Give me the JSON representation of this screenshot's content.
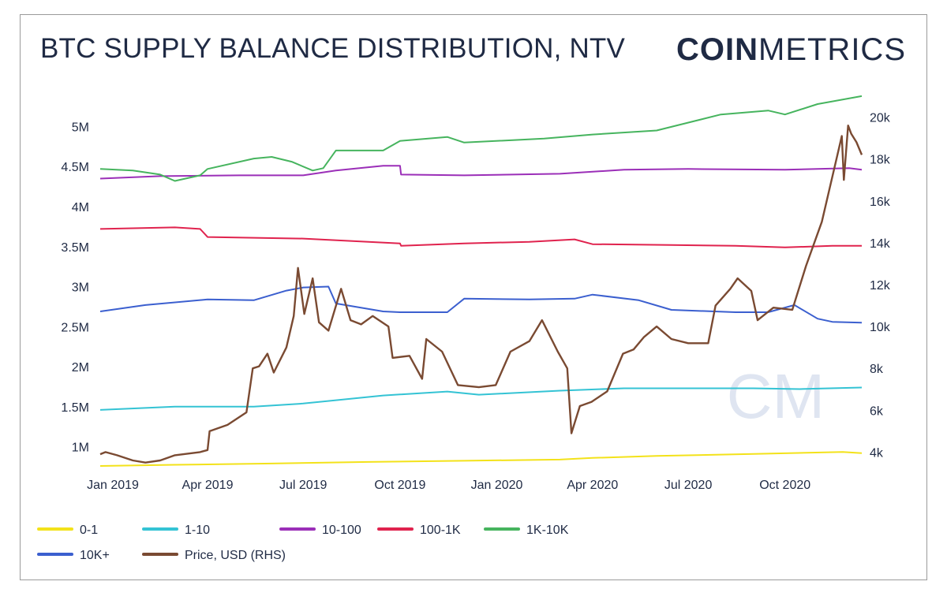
{
  "title": "BTC SUPPLY BALANCE DISTRIBUTION, NTV",
  "brand": {
    "part1": "COIN",
    "part2": "METRICS",
    "watermark": "CM"
  },
  "chart_data": {
    "type": "line",
    "title": "BTC SUPPLY BALANCE DISTRIBUTION, NTV",
    "x_start": "2018-12-20",
    "x_end": "2020-12-13",
    "x_ticks": [
      {
        "date": "2019-01-01",
        "label": "Jan 2019"
      },
      {
        "date": "2019-04-01",
        "label": "Apr 2019"
      },
      {
        "date": "2019-07-01",
        "label": "Jul 2019"
      },
      {
        "date": "2019-10-01",
        "label": "Oct 2019"
      },
      {
        "date": "2020-01-01",
        "label": "Jan 2020"
      },
      {
        "date": "2020-04-01",
        "label": "Apr 2020"
      },
      {
        "date": "2020-07-01",
        "label": "Jul 2020"
      },
      {
        "date": "2020-10-01",
        "label": "Oct 2020"
      }
    ],
    "left_axis": {
      "ylim": [
        750000,
        5300000
      ],
      "ticks": [
        {
          "value": 1000000,
          "label": "1M"
        },
        {
          "value": 1500000,
          "label": "1.5M"
        },
        {
          "value": 2000000,
          "label": "2M"
        },
        {
          "value": 2500000,
          "label": "2.5M"
        },
        {
          "value": 3000000,
          "label": "3M"
        },
        {
          "value": 3500000,
          "label": "3.5M"
        },
        {
          "value": 4000000,
          "label": "4M"
        },
        {
          "value": 4500000,
          "label": "4.5M"
        },
        {
          "value": 5000000,
          "label": "5M"
        }
      ]
    },
    "right_axis": {
      "ylim": [
        3300,
        20700
      ],
      "ticks": [
        {
          "value": 4000,
          "label": "4k"
        },
        {
          "value": 6000,
          "label": "6k"
        },
        {
          "value": 8000,
          "label": "8k"
        },
        {
          "value": 10000,
          "label": "10k"
        },
        {
          "value": 12000,
          "label": "12k"
        },
        {
          "value": 14000,
          "label": "14k"
        },
        {
          "value": 16000,
          "label": "16k"
        },
        {
          "value": 18000,
          "label": "18k"
        },
        {
          "value": 20000,
          "label": "20k"
        }
      ]
    },
    "series": [
      {
        "name": "0-1",
        "color": "#f3e21a",
        "axis": "left",
        "points": [
          [
            "2018-12-20",
            760000
          ],
          [
            "2019-03-01",
            775000
          ],
          [
            "2019-06-01",
            790000
          ],
          [
            "2019-09-01",
            810000
          ],
          [
            "2019-12-01",
            825000
          ],
          [
            "2020-03-01",
            840000
          ],
          [
            "2020-04-01",
            860000
          ],
          [
            "2020-06-01",
            885000
          ],
          [
            "2020-09-01",
            910000
          ],
          [
            "2020-11-25",
            935000
          ],
          [
            "2020-12-13",
            920000
          ]
        ]
      },
      {
        "name": "1-10",
        "color": "#34c3d4",
        "axis": "left",
        "points": [
          [
            "2018-12-20",
            1460000
          ],
          [
            "2019-03-01",
            1500000
          ],
          [
            "2019-05-15",
            1500000
          ],
          [
            "2019-07-01",
            1540000
          ],
          [
            "2019-09-15",
            1640000
          ],
          [
            "2019-11-15",
            1690000
          ],
          [
            "2019-12-15",
            1650000
          ],
          [
            "2020-03-01",
            1700000
          ],
          [
            "2020-05-01",
            1730000
          ],
          [
            "2020-07-01",
            1730000
          ],
          [
            "2020-09-01",
            1730000
          ],
          [
            "2020-10-15",
            1720000
          ],
          [
            "2020-12-13",
            1740000
          ]
        ]
      },
      {
        "name": "10-100",
        "color": "#9b2fb8",
        "axis": "left",
        "points": [
          [
            "2018-12-20",
            4350000
          ],
          [
            "2019-02-15",
            4380000
          ],
          [
            "2019-05-01",
            4390000
          ],
          [
            "2019-07-01",
            4390000
          ],
          [
            "2019-08-01",
            4450000
          ],
          [
            "2019-09-15",
            4510000
          ],
          [
            "2019-10-01",
            4510000
          ],
          [
            "2019-10-02",
            4400000
          ],
          [
            "2019-12-01",
            4390000
          ],
          [
            "2020-03-01",
            4410000
          ],
          [
            "2020-05-01",
            4460000
          ],
          [
            "2020-07-01",
            4470000
          ],
          [
            "2020-10-01",
            4460000
          ],
          [
            "2020-12-01",
            4480000
          ],
          [
            "2020-12-13",
            4460000
          ]
        ]
      },
      {
        "name": "100-1K",
        "color": "#e0234e",
        "axis": "left",
        "points": [
          [
            "2018-12-20",
            3720000
          ],
          [
            "2019-03-01",
            3740000
          ],
          [
            "2019-03-25",
            3720000
          ],
          [
            "2019-04-01",
            3620000
          ],
          [
            "2019-07-01",
            3600000
          ],
          [
            "2019-09-01",
            3560000
          ],
          [
            "2019-10-01",
            3540000
          ],
          [
            "2019-10-02",
            3510000
          ],
          [
            "2019-12-01",
            3540000
          ],
          [
            "2020-02-01",
            3560000
          ],
          [
            "2020-03-15",
            3590000
          ],
          [
            "2020-04-01",
            3530000
          ],
          [
            "2020-06-15",
            3520000
          ],
          [
            "2020-08-15",
            3510000
          ],
          [
            "2020-10-01",
            3490000
          ],
          [
            "2020-11-15",
            3510000
          ],
          [
            "2020-12-13",
            3510000
          ]
        ]
      },
      {
        "name": "1K-10K",
        "color": "#46b45e",
        "axis": "left",
        "points": [
          [
            "2018-12-20",
            4470000
          ],
          [
            "2019-01-20",
            4450000
          ],
          [
            "2019-02-15",
            4400000
          ],
          [
            "2019-03-01",
            4320000
          ],
          [
            "2019-03-25",
            4390000
          ],
          [
            "2019-04-01",
            4470000
          ],
          [
            "2019-05-15",
            4600000
          ],
          [
            "2019-06-01",
            4620000
          ],
          [
            "2019-06-20",
            4560000
          ],
          [
            "2019-07-10",
            4450000
          ],
          [
            "2019-07-20",
            4480000
          ],
          [
            "2019-08-01",
            4700000
          ],
          [
            "2019-09-15",
            4700000
          ],
          [
            "2019-10-01",
            4820000
          ],
          [
            "2019-11-15",
            4870000
          ],
          [
            "2019-12-01",
            4800000
          ],
          [
            "2020-02-15",
            4850000
          ],
          [
            "2020-04-01",
            4900000
          ],
          [
            "2020-06-01",
            4950000
          ],
          [
            "2020-08-01",
            5150000
          ],
          [
            "2020-09-15",
            5200000
          ],
          [
            "2020-10-01",
            5150000
          ],
          [
            "2020-11-01",
            5280000
          ],
          [
            "2020-12-13",
            5380000
          ]
        ]
      },
      {
        "name": "10K+",
        "color": "#3b5fcf",
        "axis": "left",
        "points": [
          [
            "2018-12-20",
            2690000
          ],
          [
            "2019-02-01",
            2770000
          ],
          [
            "2019-04-01",
            2840000
          ],
          [
            "2019-05-15",
            2830000
          ],
          [
            "2019-06-15",
            2950000
          ],
          [
            "2019-07-01",
            2990000
          ],
          [
            "2019-07-25",
            3000000
          ],
          [
            "2019-08-01",
            2790000
          ],
          [
            "2019-09-15",
            2690000
          ],
          [
            "2019-10-01",
            2680000
          ],
          [
            "2019-11-15",
            2680000
          ],
          [
            "2019-12-01",
            2850000
          ],
          [
            "2020-02-01",
            2840000
          ],
          [
            "2020-03-15",
            2850000
          ],
          [
            "2020-04-01",
            2900000
          ],
          [
            "2020-05-15",
            2830000
          ],
          [
            "2020-06-15",
            2710000
          ],
          [
            "2020-08-15",
            2680000
          ],
          [
            "2020-09-15",
            2680000
          ],
          [
            "2020-10-10",
            2770000
          ],
          [
            "2020-11-01",
            2600000
          ],
          [
            "2020-11-15",
            2560000
          ],
          [
            "2020-12-13",
            2550000
          ]
        ]
      },
      {
        "name": "Price, USD (RHS)",
        "color": "#7a4a32",
        "axis": "right",
        "points": [
          [
            "2018-12-20",
            3900
          ],
          [
            "2018-12-25",
            4000
          ],
          [
            "2019-01-05",
            3850
          ],
          [
            "2019-01-20",
            3600
          ],
          [
            "2019-02-01",
            3500
          ],
          [
            "2019-02-15",
            3600
          ],
          [
            "2019-03-01",
            3850
          ],
          [
            "2019-03-25",
            4000
          ],
          [
            "2019-04-01",
            4100
          ],
          [
            "2019-04-03",
            5000
          ],
          [
            "2019-04-20",
            5300
          ],
          [
            "2019-05-08",
            5900
          ],
          [
            "2019-05-14",
            8000
          ],
          [
            "2019-05-20",
            8100
          ],
          [
            "2019-05-28",
            8700
          ],
          [
            "2019-06-03",
            7800
          ],
          [
            "2019-06-15",
            9000
          ],
          [
            "2019-06-22",
            10500
          ],
          [
            "2019-06-26",
            12800
          ],
          [
            "2019-07-02",
            10600
          ],
          [
            "2019-07-10",
            12300
          ],
          [
            "2019-07-16",
            10200
          ],
          [
            "2019-07-25",
            9800
          ],
          [
            "2019-08-06",
            11800
          ],
          [
            "2019-08-15",
            10300
          ],
          [
            "2019-08-25",
            10100
          ],
          [
            "2019-09-05",
            10500
          ],
          [
            "2019-09-20",
            10000
          ],
          [
            "2019-09-24",
            8500
          ],
          [
            "2019-10-10",
            8600
          ],
          [
            "2019-10-22",
            7500
          ],
          [
            "2019-10-26",
            9400
          ],
          [
            "2019-11-10",
            8800
          ],
          [
            "2019-11-25",
            7200
          ],
          [
            "2019-12-15",
            7100
          ],
          [
            "2019-12-31",
            7200
          ],
          [
            "2020-01-14",
            8800
          ],
          [
            "2020-02-01",
            9300
          ],
          [
            "2020-02-13",
            10300
          ],
          [
            "2020-02-28",
            8800
          ],
          [
            "2020-03-08",
            8000
          ],
          [
            "2020-03-12",
            4900
          ],
          [
            "2020-03-20",
            6200
          ],
          [
            "2020-03-31",
            6400
          ],
          [
            "2020-04-15",
            6900
          ],
          [
            "2020-04-30",
            8700
          ],
          [
            "2020-05-10",
            8900
          ],
          [
            "2020-05-20",
            9500
          ],
          [
            "2020-06-01",
            10000
          ],
          [
            "2020-06-15",
            9400
          ],
          [
            "2020-07-01",
            9200
          ],
          [
            "2020-07-20",
            9200
          ],
          [
            "2020-07-27",
            11000
          ],
          [
            "2020-08-10",
            11800
          ],
          [
            "2020-08-17",
            12300
          ],
          [
            "2020-08-30",
            11700
          ],
          [
            "2020-09-05",
            10300
          ],
          [
            "2020-09-20",
            10900
          ],
          [
            "2020-10-08",
            10800
          ],
          [
            "2020-10-21",
            12900
          ],
          [
            "2020-11-05",
            15000
          ],
          [
            "2020-11-18",
            17800
          ],
          [
            "2020-11-24",
            19100
          ],
          [
            "2020-11-26",
            17000
          ],
          [
            "2020-11-30",
            19600
          ],
          [
            "2020-12-03",
            19200
          ],
          [
            "2020-12-08",
            18800
          ],
          [
            "2020-12-13",
            18200
          ]
        ]
      }
    ],
    "legend": [
      {
        "label": "0-1",
        "color": "#f3e21a"
      },
      {
        "label": "1-10",
        "color": "#34c3d4"
      },
      {
        "label": "10-100",
        "color": "#9b2fb8"
      },
      {
        "label": "100-1K",
        "color": "#e0234e"
      },
      {
        "label": "1K-10K",
        "color": "#46b45e"
      },
      {
        "label": "10K+",
        "color": "#3b5fcf"
      },
      {
        "label": "Price, USD (RHS)",
        "color": "#7a4a32"
      }
    ],
    "legend_position": "bottom"
  }
}
